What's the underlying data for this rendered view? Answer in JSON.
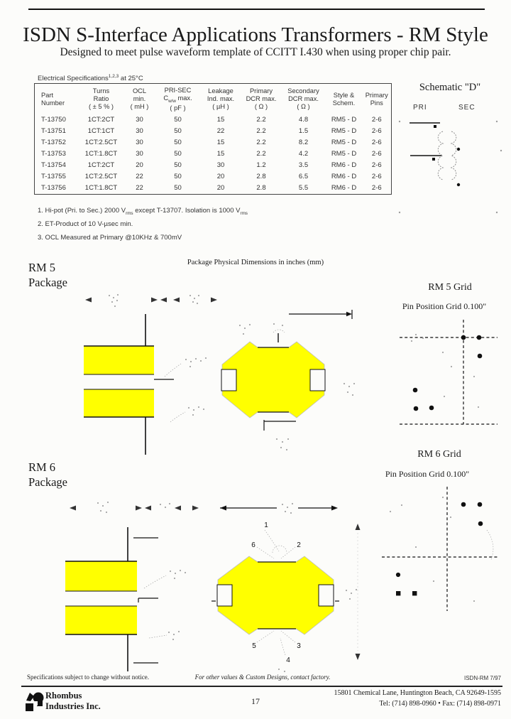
{
  "page": {
    "title": "ISDN S-Interface Applications Transformers - RM Style",
    "subtitle": "Designed to meet pulse waveform template of CCITT I.430 when using proper chip pair.",
    "page_number": "17"
  },
  "spec_table": {
    "caption_main": "Electrical Specifications",
    "caption_sup": "1,2,3",
    "caption_tail": " at 25°C",
    "columns": [
      {
        "lines": [
          "Part",
          "Number"
        ]
      },
      {
        "lines": [
          "Turns",
          "Ratio",
          "( ± 5 % )"
        ]
      },
      {
        "lines": [
          "OCL",
          "min.",
          "( mH )"
        ]
      },
      {
        "lines": [
          "PRI-SEC",
          "( pF )"
        ],
        "sub": {
          "pre": "C",
          "sub": "w/w",
          "post": " max."
        }
      },
      {
        "lines": [
          "Leakage",
          "Ind. max.",
          "( µH )"
        ]
      },
      {
        "lines": [
          "Primary",
          "DCR max.",
          "( Ω )"
        ]
      },
      {
        "lines": [
          "Secondary",
          "DCR max.",
          "( Ω )"
        ]
      },
      {
        "lines": [
          "Style &",
          "Schem."
        ]
      },
      {
        "lines": [
          "Primary",
          "Pins"
        ]
      }
    ],
    "rows": [
      [
        "T-13750",
        "1CT:2CT",
        "30",
        "50",
        "15",
        "2.2",
        "4.8",
        "RM5 - D",
        "2-6"
      ],
      [
        "T-13751",
        "1CT:1CT",
        "30",
        "50",
        "22",
        "2.2",
        "1.5",
        "RM5 - D",
        "2-6"
      ],
      [
        "T-13752",
        "1CT:2.5CT",
        "30",
        "50",
        "15",
        "2.2",
        "8.2",
        "RM5 - D",
        "2-6"
      ],
      [
        "T-13753",
        "1CT:1.8CT",
        "30",
        "50",
        "15",
        "2.2",
        "4.2",
        "RM5 - D",
        "2-6"
      ],
      [
        "T-13754",
        "1CT:2CT",
        "20",
        "50",
        "30",
        "1.2",
        "3.5",
        "RM6 - D",
        "2-6"
      ],
      [
        "T-13755",
        "1CT:2.5CT",
        "22",
        "50",
        "20",
        "2.8",
        "6.5",
        "RM6 - D",
        "2-6"
      ],
      [
        "T-13756",
        "1CT:1.8CT",
        "22",
        "50",
        "20",
        "2.8",
        "5.5",
        "RM6 - D",
        "2-6"
      ]
    ],
    "footnotes": {
      "fn1_a": "1. Hi-pot (Pri. to Sec.) 2000 V",
      "fn1_sub1": "rms",
      "fn1_b": " except T-13707. Isolation is 1000 V",
      "fn1_sub2": "rms",
      "fn2": "2. ET-Product of 10 V-µsec min.",
      "fn3": "3. OCL Measured at Primary @10KHz & 700mV"
    }
  },
  "schematic": {
    "title": "Schematic \"D\"",
    "pri_label": "PRI",
    "sec_label": "SEC"
  },
  "packages": {
    "dims_title": "Package Physical Dimensions in inches (mm)",
    "rm5": {
      "name_line1": "RM 5",
      "name_line2": "Package",
      "grid_title": "RM 5 Grid",
      "grid_subtitle": "Pin Position Grid 0.100\""
    },
    "rm6": {
      "name_line1": "RM 6",
      "name_line2": "Package",
      "grid_title": "RM 6 Grid",
      "grid_subtitle": "Pin Position Grid 0.100\"",
      "pins": [
        "1",
        "2",
        "3",
        "4",
        "5",
        "6"
      ]
    }
  },
  "footer": {
    "left_note": "Specifications subject to change without notice.",
    "center_note": "For other values & Custom Designs, contact factory.",
    "doc_code": "ISDN-RM 7/97",
    "company_line1": "Rhombus",
    "company_line2": "Industries Inc.",
    "address": "15801 Chemical Lane, Huntington Beach, CA 92649-1595",
    "phone": "Tel: (714) 898-0960  •  Fax: (714) 898-0971"
  },
  "colors": {
    "package_fill": "#ffff00"
  }
}
